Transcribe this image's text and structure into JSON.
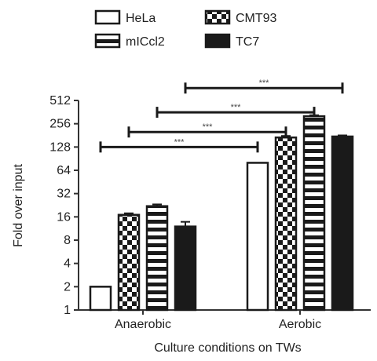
{
  "chart_data": {
    "type": "bar",
    "title": "",
    "xlabel": "Culture conditions on TWs",
    "ylabel": "Fold over input",
    "yscale": "log2",
    "ylim": [
      1,
      512
    ],
    "yticks": [
      "1",
      "2",
      "4",
      "8",
      "16",
      "32",
      "64",
      "128",
      "256",
      "512"
    ],
    "categories": [
      "Anaerobic",
      "Aerobic"
    ],
    "series": [
      {
        "name": "HeLa",
        "pattern": "white",
        "values": [
          2,
          80
        ],
        "errors": [
          0,
          0
        ]
      },
      {
        "name": "CMT93",
        "pattern": "checker",
        "values": [
          17,
          170
        ],
        "errors": [
          0.8,
          8
        ]
      },
      {
        "name": "mICcl2",
        "pattern": "hstripe",
        "values": [
          22,
          320
        ],
        "errors": [
          1.2,
          10
        ]
      },
      {
        "name": "TC7",
        "pattern": "black",
        "values": [
          12,
          175
        ],
        "errors": [
          1.8,
          6
        ]
      }
    ],
    "legend_position": "top",
    "significance": [
      {
        "from": [
          "Anaerobic",
          0
        ],
        "to": [
          "Aerobic",
          0
        ],
        "y": 128,
        "label": "***"
      },
      {
        "from": [
          "Anaerobic",
          1
        ],
        "to": [
          "Aerobic",
          1
        ],
        "y": 200,
        "label": "***"
      },
      {
        "from": [
          "Anaerobic",
          2
        ],
        "to": [
          "Aerobic",
          2
        ],
        "y": 360,
        "label": "***"
      },
      {
        "from": [
          "Anaerobic",
          3
        ],
        "to": [
          "Aerobic",
          3
        ],
        "y": 740,
        "label": "***"
      }
    ],
    "colors": {
      "ink": "#1a1a1a",
      "fill_white": "#ffffff",
      "axis": "#333333"
    }
  }
}
